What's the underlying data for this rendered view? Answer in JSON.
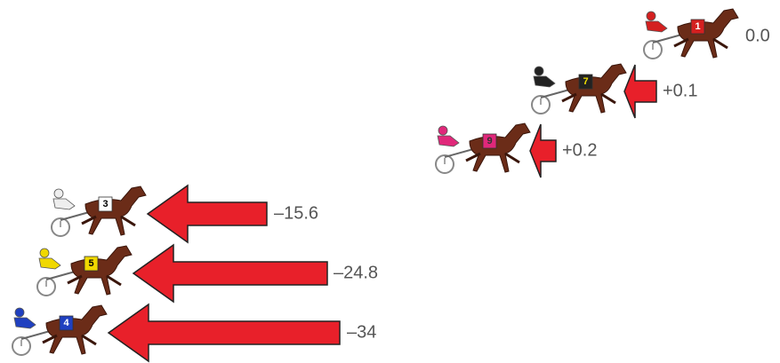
{
  "horses": [
    {
      "number": "1",
      "label": "0.0"
    },
    {
      "number": "7",
      "label": "+0.1"
    },
    {
      "number": "9",
      "label": "+0.2"
    },
    {
      "number": "3",
      "label": "–15.6"
    },
    {
      "number": "5",
      "label": "–24.8"
    },
    {
      "number": "4",
      "label": "–34"
    }
  ]
}
